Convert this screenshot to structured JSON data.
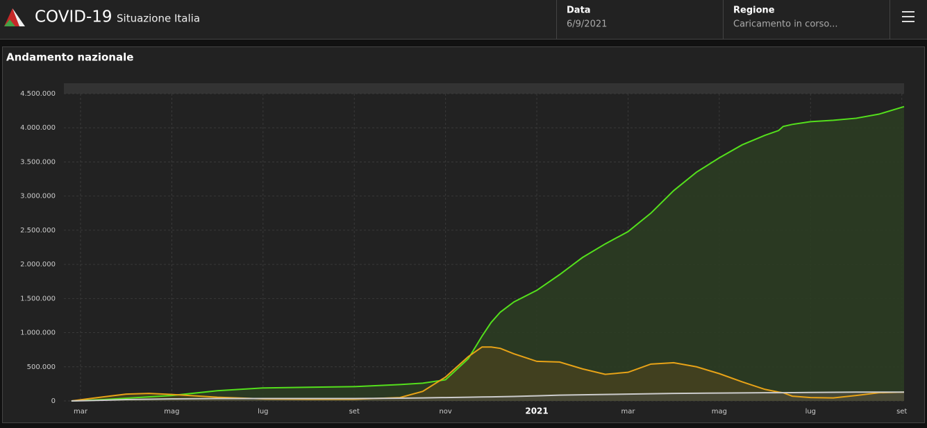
{
  "header": {
    "title": "COVID-19",
    "subtitle": "Situazione Italia",
    "date_label": "Data",
    "date_value": "6/9/2021",
    "region_label": "Regione",
    "region_value": "Caricamento in corso..."
  },
  "chart_data": {
    "type": "area",
    "title": "Andamento nazionale",
    "x": [
      -0.2,
      0.5,
      1,
      1.5,
      2,
      3,
      4,
      5,
      6,
      7,
      7.5,
      8,
      8.5,
      8.8,
      9,
      9.2,
      9.5,
      10,
      10.5,
      11,
      11.5,
      12,
      12.5,
      13,
      13.5,
      14,
      14.5,
      15,
      15.3,
      15.4,
      15.6,
      16,
      16.5,
      17,
      17.5,
      18.05
    ],
    "series": [
      {
        "color": "#54e01c",
        "fill": "#2c3d22",
        "values": [
          0,
          20000,
          40000,
          60000,
          80000,
          150000,
          190000,
          200000,
          210000,
          240000,
          260000,
          310000,
          620000,
          950000,
          1150000,
          1300000,
          1450000,
          1620000,
          1850000,
          2100000,
          2300000,
          2480000,
          2750000,
          3080000,
          3350000,
          3560000,
          3750000,
          3890000,
          3960000,
          4020000,
          4050000,
          4090000,
          4110000,
          4140000,
          4200000,
          4310000
        ]
      },
      {
        "color": "#e8a317",
        "fill": "#45421f",
        "values": [
          0,
          60000,
          100000,
          110000,
          95000,
          55000,
          30000,
          25000,
          25000,
          50000,
          140000,
          350000,
          650000,
          790000,
          790000,
          770000,
          690000,
          580000,
          570000,
          470000,
          390000,
          420000,
          540000,
          560000,
          500000,
          400000,
          280000,
          170000,
          130000,
          120000,
          70000,
          50000,
          45000,
          80000,
          120000,
          130000
        ]
      },
      {
        "color": "#cccccc",
        "fill": "#4a4a3a",
        "values": [
          0,
          10000,
          20000,
          25000,
          30000,
          35000,
          35000,
          35000,
          35000,
          40000,
          45000,
          50000,
          55000,
          58000,
          60000,
          62000,
          66000,
          75000,
          85000,
          90000,
          95000,
          100000,
          105000,
          110000,
          113000,
          115000,
          118000,
          120000,
          120000,
          120000,
          122000,
          125000,
          127000,
          130000,
          130000,
          130000
        ]
      }
    ],
    "xlim": [
      -0.365,
      18.05
    ],
    "xticks": [
      {
        "value": 0,
        "label": "mar"
      },
      {
        "value": 2,
        "label": "mag"
      },
      {
        "value": 4,
        "label": "lug"
      },
      {
        "value": 6,
        "label": "set"
      },
      {
        "value": 8,
        "label": "nov"
      },
      {
        "value": 10,
        "label": "2021"
      },
      {
        "value": 12,
        "label": "mar"
      },
      {
        "value": 14,
        "label": "mag"
      },
      {
        "value": 16,
        "label": "lug"
      },
      {
        "value": 18,
        "label": "set"
      }
    ],
    "ylim": [
      0,
      4500000
    ],
    "yticks": [
      0,
      {
        "value": 500000,
        "label": "500.000"
      },
      {
        "value": 1000000,
        "label": "1.000.000"
      },
      {
        "value": 1500000,
        "label": "1.500.000"
      },
      {
        "value": 2000000,
        "label": "2.000.000"
      },
      {
        "value": 2500000,
        "label": "2.500.000"
      },
      {
        "value": 3000000,
        "label": "3.000.000"
      },
      {
        "value": 3500000,
        "label": "3.500.000"
      },
      {
        "value": 4000000,
        "label": "4.000.000"
      },
      {
        "value": 4500000,
        "label": "4.500.000"
      }
    ],
    "grid": true
  }
}
